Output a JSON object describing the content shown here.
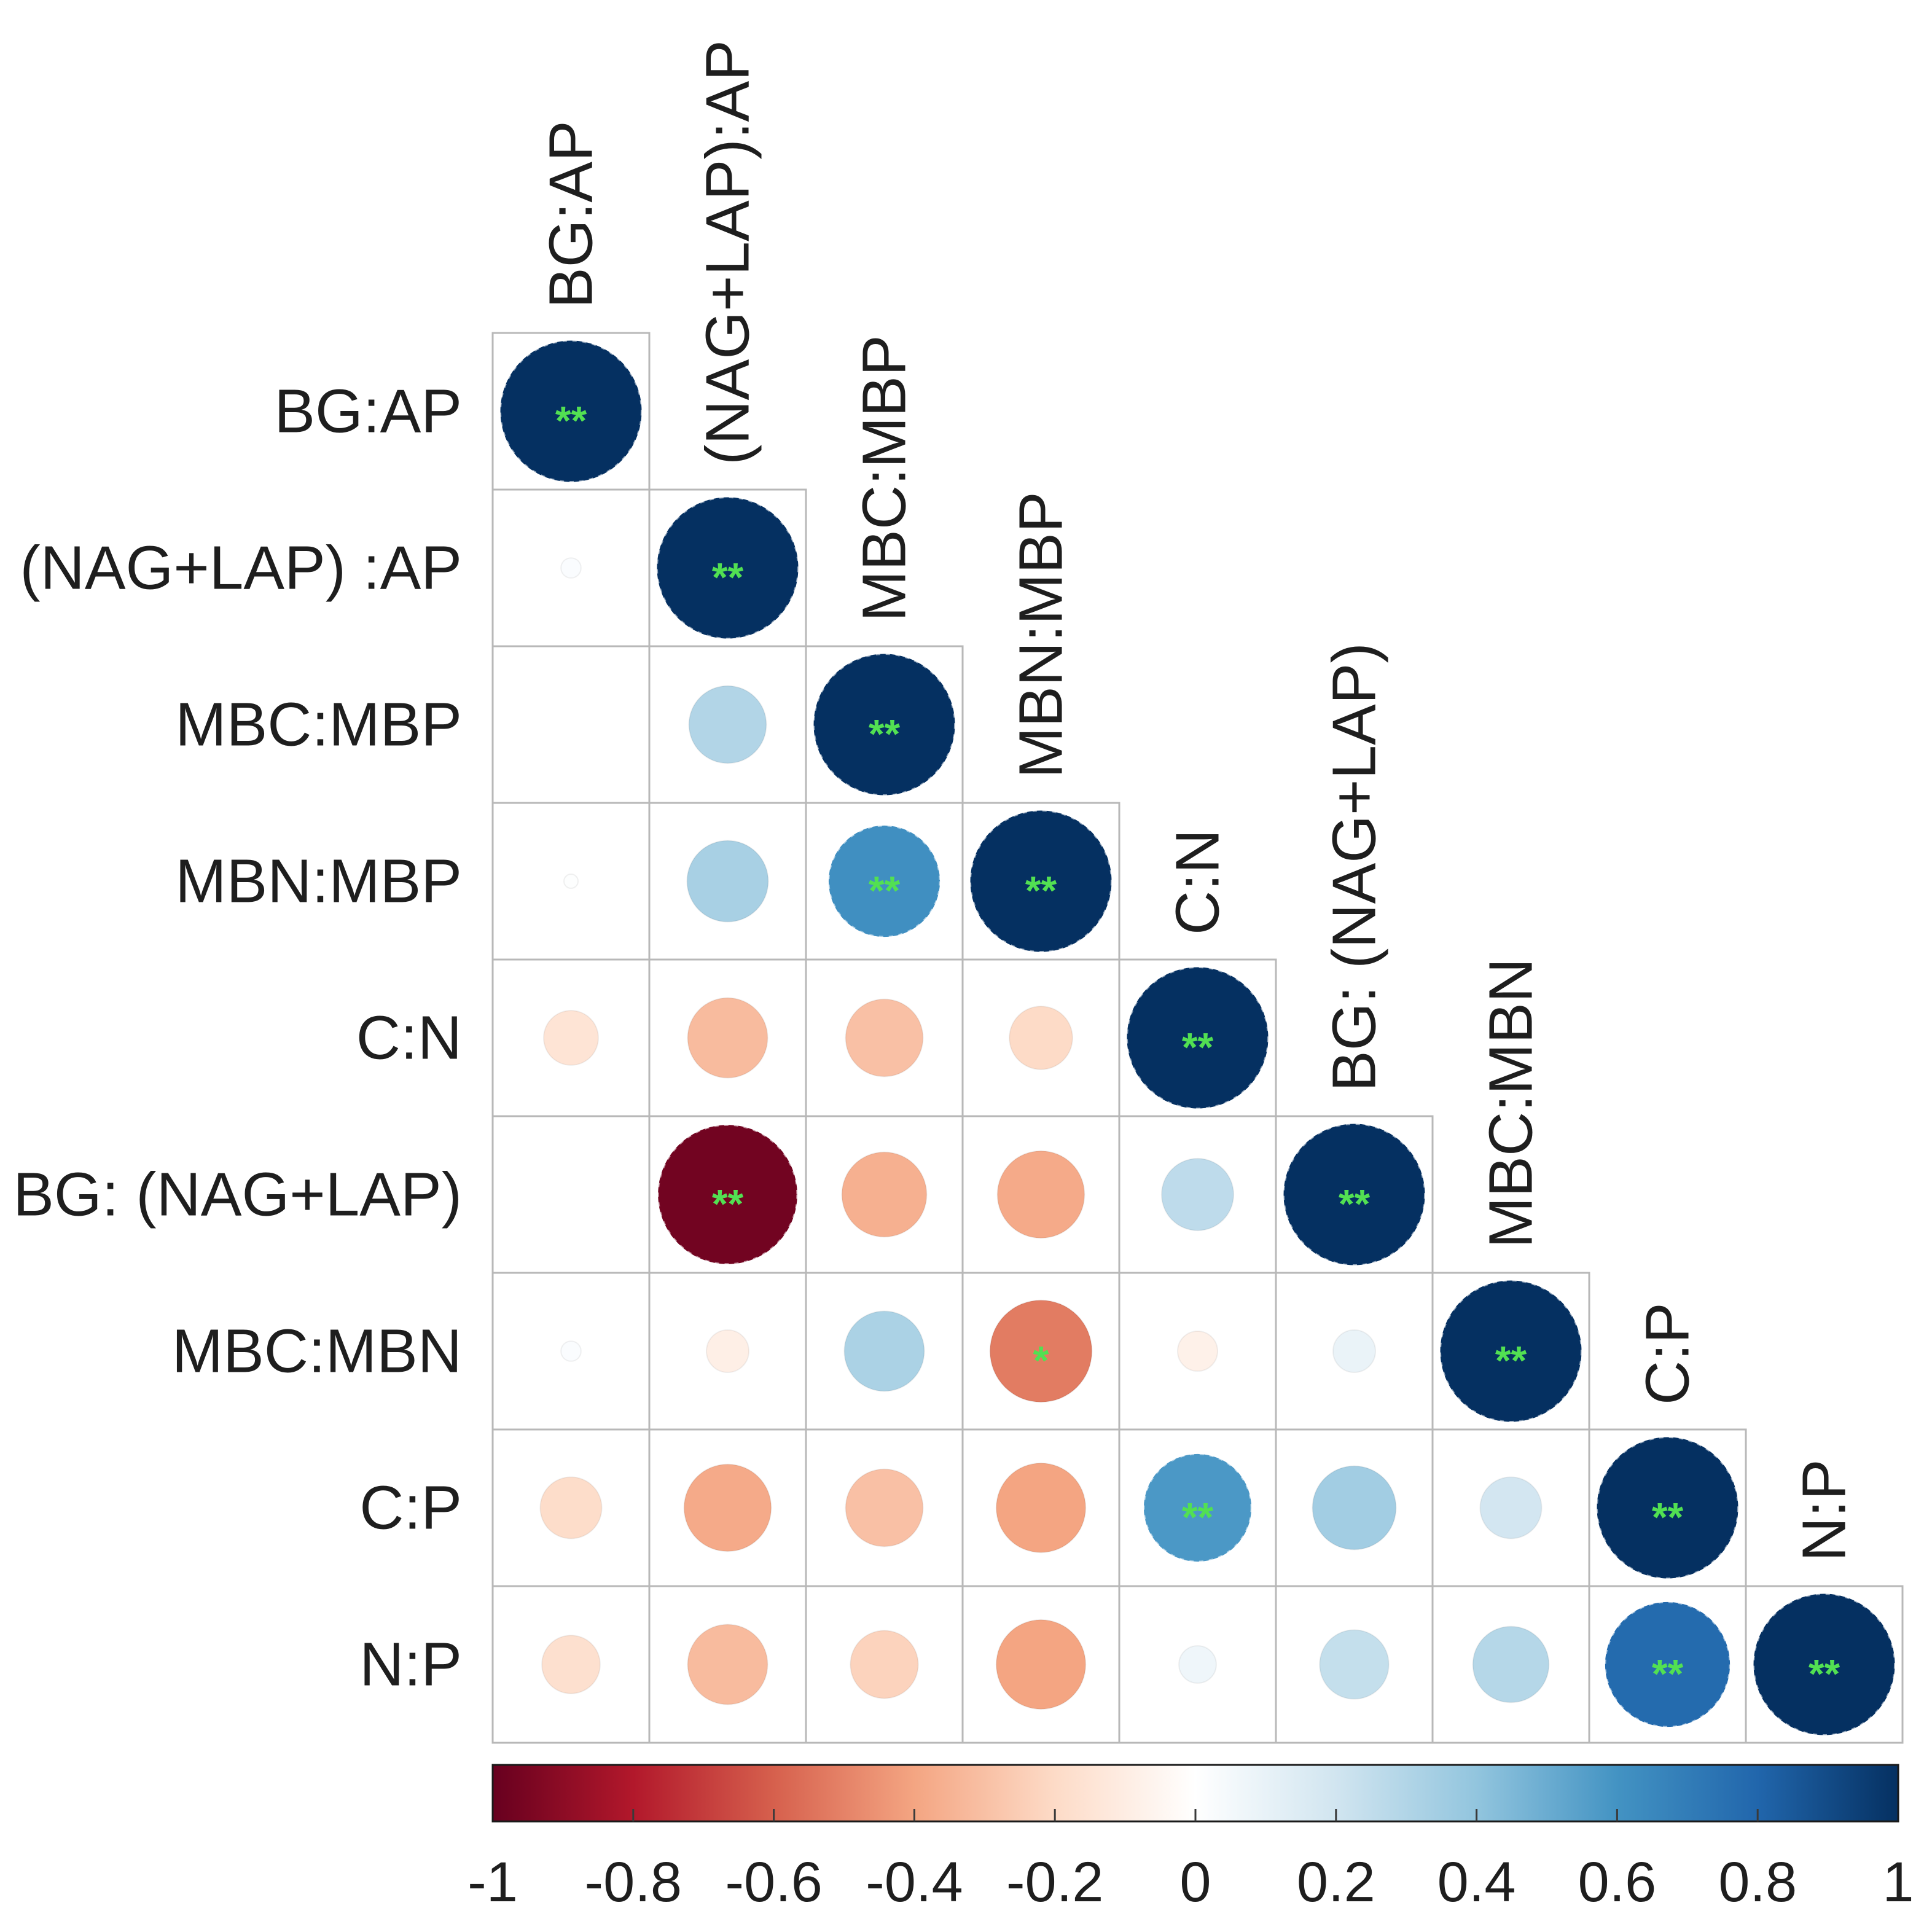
{
  "chart_data": {
    "type": "heatmap",
    "row_labels": [
      "BG:AP",
      "(NAG+LAP) :AP",
      "MBC:MBP",
      "MBN:MBP",
      "C:N",
      "BG: (NAG+LAP)",
      "MBC:MBN",
      "C:P",
      "N:P"
    ],
    "col_labels": [
      "BG:AP",
      "(NAG+LAP):AP",
      "MBC:MBP",
      "MBN:MBP",
      "C:N",
      "BG: (NAG+LAP)",
      "MBC:MBN",
      "C:P",
      "N:P"
    ],
    "values": [
      [
        1.0,
        null,
        null,
        null,
        null,
        null,
        null,
        null,
        null
      ],
      [
        0.02,
        1.0,
        null,
        null,
        null,
        null,
        null,
        null,
        null
      ],
      [
        0.0,
        0.3,
        1.0,
        null,
        null,
        null,
        null,
        null,
        null
      ],
      [
        0.01,
        0.33,
        0.62,
        1.0,
        null,
        null,
        null,
        null,
        null
      ],
      [
        -0.15,
        -0.32,
        -0.3,
        -0.2,
        1.0,
        null,
        null,
        null,
        null
      ],
      [
        0.0,
        -0.97,
        -0.36,
        -0.38,
        0.26,
        1.0,
        null,
        null,
        null
      ],
      [
        0.02,
        -0.09,
        0.32,
        -0.52,
        -0.08,
        0.09,
        1.0,
        null,
        null
      ],
      [
        -0.19,
        -0.38,
        -0.3,
        -0.4,
        0.58,
        0.35,
        0.19,
        1.0,
        null
      ],
      [
        -0.17,
        -0.32,
        -0.23,
        -0.4,
        0.07,
        0.24,
        0.29,
        0.78,
        1.0
      ]
    ],
    "significance": [
      [
        "**",
        null,
        null,
        null,
        null,
        null,
        null,
        null,
        null
      ],
      [
        null,
        "**",
        null,
        null,
        null,
        null,
        null,
        null,
        null
      ],
      [
        null,
        null,
        "**",
        null,
        null,
        null,
        null,
        null,
        null
      ],
      [
        null,
        null,
        "**",
        "**",
        null,
        null,
        null,
        null,
        null
      ],
      [
        null,
        null,
        null,
        null,
        "**",
        null,
        null,
        null,
        null
      ],
      [
        null,
        "**",
        null,
        null,
        null,
        "**",
        null,
        null,
        null
      ],
      [
        null,
        null,
        null,
        "*",
        null,
        null,
        "**",
        null,
        null
      ],
      [
        null,
        null,
        null,
        null,
        "**",
        null,
        null,
        "**",
        null
      ],
      [
        null,
        null,
        null,
        null,
        null,
        null,
        null,
        "**",
        "**"
      ]
    ],
    "value_range": [
      -1,
      1
    ],
    "colorbar": {
      "ticks": [
        -1,
        -0.8,
        -0.6,
        -0.4,
        -0.2,
        0,
        0.2,
        0.4,
        0.6,
        0.8,
        1
      ],
      "tick_labels": [
        "-1",
        "-0.8",
        "-0.6",
        "-0.4",
        "-0.2",
        "0",
        "0.2",
        "0.4",
        "0.6",
        "0.8",
        "1"
      ]
    },
    "colorscale": {
      "stops": [
        -1,
        -0.8,
        -0.6,
        -0.4,
        -0.2,
        0,
        0.2,
        0.4,
        0.6,
        0.8,
        1
      ],
      "colors": [
        "#67001F",
        "#B2182B",
        "#D6604D",
        "#F4A582",
        "#FDDBC7",
        "#FFFFFF",
        "#D1E5F0",
        "#92C5DE",
        "#4393C3",
        "#2166AC",
        "#053061"
      ]
    }
  },
  "colors": {
    "significance_mark": "#52E052",
    "grid_line": "#B8B8B8",
    "label_text": "#1E1E1E",
    "colorbar_border": "#1A1A1A",
    "tick_mark": "#3A3A3A"
  }
}
